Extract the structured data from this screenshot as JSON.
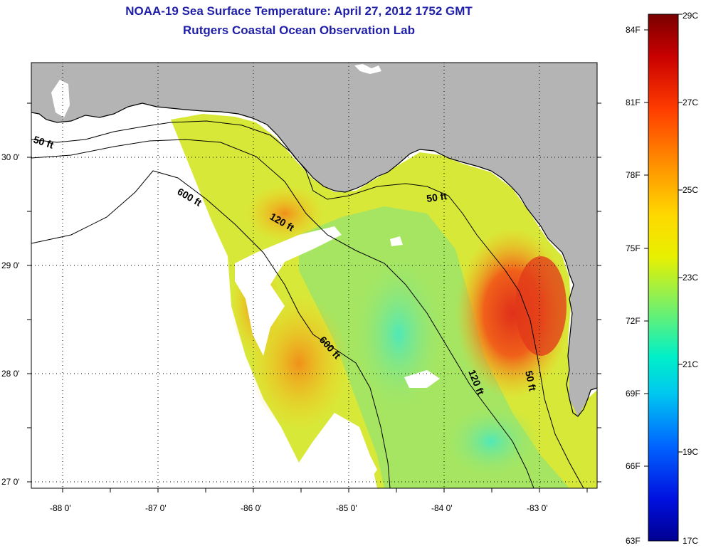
{
  "title": {
    "line1": "NOAA-19 Sea Surface Temperature:  April 27, 2012 1752 GMT",
    "line2": "Rutgers Coastal Ocean Observation Lab"
  },
  "map": {
    "lat_labels": [
      "30 0'",
      "29 0'",
      "28 0'",
      "27 0'"
    ],
    "lon_labels": [
      "-88 0'",
      "-87 0'",
      "-86 0'",
      "-85 0'",
      "-84 0'",
      "-83 0'"
    ],
    "contours": {
      "c50_west": "50 ft",
      "c600_north": "600 ft",
      "c120_north": "120 ft",
      "c50_east": "50 ft",
      "c600_south": "600 ft",
      "c120_south": "120 ft",
      "c50_south": "50 ft"
    },
    "colors": {
      "land": "#b4b4b4",
      "nodata": "#ffffff",
      "warm": "#e8481a",
      "mid": "#f5d21a",
      "cool": "#5fe8a0"
    }
  },
  "colorbar": {
    "fahrenheit": [
      "84F",
      "81F",
      "78F",
      "75F",
      "72F",
      "69F",
      "66F",
      "63F"
    ],
    "celsius": [
      "29C",
      "27C",
      "25C",
      "23C",
      "21C",
      "19C",
      "17C"
    ]
  }
}
